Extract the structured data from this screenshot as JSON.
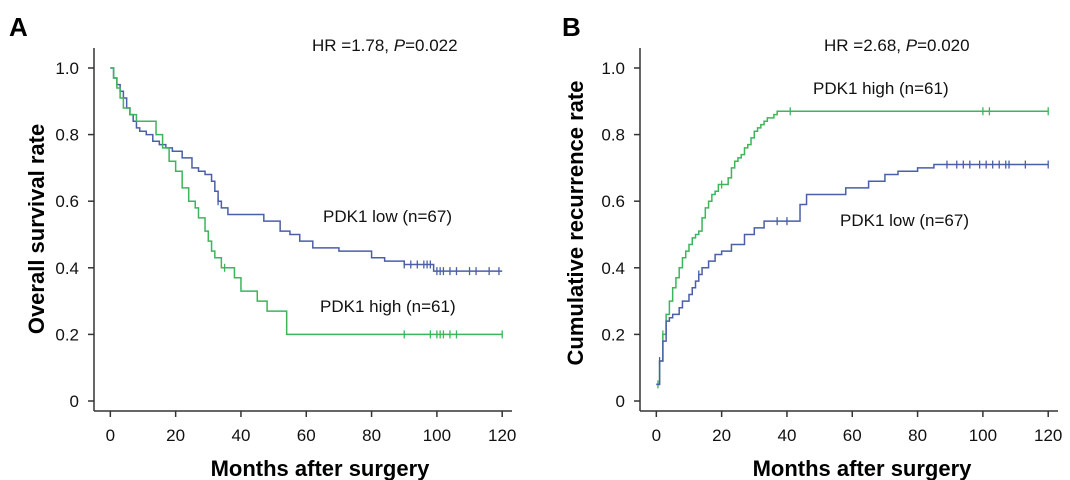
{
  "chart_data": [
    {
      "panel": "A",
      "type": "line",
      "xlabel": "Months after surgery",
      "ylabel": "Overall survival rate",
      "xlim": [
        -5,
        123
      ],
      "ylim": [
        -0.03,
        1.06
      ],
      "xticks": [
        0,
        20,
        40,
        60,
        80,
        100,
        120
      ],
      "yticks": [
        0,
        0.2,
        0.4,
        0.6,
        0.8,
        1.0
      ],
      "ytick_labels": [
        "0",
        "0.2",
        "0.4",
        "0.6",
        "0.8",
        "1.0"
      ],
      "stat_text": {
        "prefix": "HR =1.78, ",
        "p_label": "P",
        "suffix": "=0.022"
      },
      "grid": false,
      "series": [
        {
          "name": "PDK1 low (n=67)",
          "color": "#4a5fa8",
          "step_x": [
            0,
            1,
            2,
            3,
            4,
            5,
            6,
            7,
            8,
            9,
            11,
            13,
            15,
            17,
            19,
            22,
            25,
            27,
            29,
            31,
            32,
            33,
            34,
            36,
            47,
            52,
            55,
            58,
            62,
            70,
            80,
            84,
            90,
            99,
            120
          ],
          "step_y": [
            1.0,
            0.97,
            0.95,
            0.93,
            0.91,
            0.88,
            0.86,
            0.84,
            0.82,
            0.81,
            0.8,
            0.78,
            0.77,
            0.76,
            0.75,
            0.73,
            0.7,
            0.69,
            0.68,
            0.66,
            0.63,
            0.6,
            0.58,
            0.56,
            0.54,
            0.51,
            0.5,
            0.48,
            0.46,
            0.45,
            0.43,
            0.42,
            0.41,
            0.39,
            0.39
          ],
          "censor_x": [
            33,
            90,
            92,
            94,
            96,
            97,
            98,
            100,
            101,
            102,
            104,
            106,
            110,
            112,
            116,
            119
          ],
          "label_pos": "middle-right"
        },
        {
          "name": "PDK1 high (n=61)",
          "color": "#3db55a",
          "step_x": [
            0,
            1,
            2,
            3,
            4,
            6,
            8,
            9,
            14,
            16,
            18,
            20,
            22,
            24,
            26,
            27,
            29,
            30,
            31,
            32,
            34,
            38,
            40,
            45,
            48,
            54,
            120
          ],
          "step_y": [
            1.0,
            0.97,
            0.94,
            0.91,
            0.88,
            0.86,
            0.84,
            0.84,
            0.8,
            0.76,
            0.72,
            0.69,
            0.64,
            0.6,
            0.58,
            0.55,
            0.51,
            0.48,
            0.45,
            0.43,
            0.4,
            0.37,
            0.33,
            0.3,
            0.27,
            0.2,
            0.2
          ],
          "censor_x": [
            35,
            90,
            98,
            100,
            101,
            102,
            104,
            106,
            120
          ],
          "label_pos": "lower-right"
        }
      ]
    },
    {
      "panel": "B",
      "type": "line",
      "xlabel": "Months after surgery",
      "ylabel": "Cumulative recurrence rate",
      "xlim": [
        -5,
        123
      ],
      "ylim": [
        -0.03,
        1.06
      ],
      "xticks": [
        0,
        20,
        40,
        60,
        80,
        100,
        120
      ],
      "yticks": [
        0,
        0.2,
        0.4,
        0.6,
        0.8,
        1.0
      ],
      "ytick_labels": [
        "0",
        "0.2",
        "0.4",
        "0.6",
        "0.8",
        "1.0"
      ],
      "stat_text": {
        "prefix": "HR =2.68, ",
        "p_label": "P",
        "suffix": "=0.020"
      },
      "grid": false,
      "series": [
        {
          "name": "PDK1 high (n=61)",
          "color": "#3db55a",
          "step_x": [
            0,
            1,
            2,
            3,
            4,
            5,
            6,
            7,
            8,
            9,
            10,
            11,
            12,
            13,
            14,
            15,
            16,
            17,
            18,
            19,
            20,
            22,
            23,
            24,
            25,
            26,
            27,
            28,
            29,
            30,
            31,
            32,
            33,
            34,
            35,
            36,
            37,
            120
          ],
          "step_y": [
            0.05,
            0.12,
            0.2,
            0.26,
            0.3,
            0.34,
            0.37,
            0.4,
            0.43,
            0.45,
            0.47,
            0.49,
            0.5,
            0.51,
            0.55,
            0.58,
            0.6,
            0.62,
            0.63,
            0.65,
            0.65,
            0.67,
            0.7,
            0.72,
            0.73,
            0.74,
            0.76,
            0.77,
            0.79,
            0.81,
            0.82,
            0.83,
            0.84,
            0.85,
            0.85,
            0.86,
            0.87,
            0.87
          ],
          "censor_x": [
            0.5,
            2,
            20,
            41,
            100,
            102,
            120
          ],
          "label_pos": "top"
        },
        {
          "name": "PDK1 low (n=67)",
          "color": "#4a5fa8",
          "step_x": [
            0,
            1,
            2,
            3,
            4,
            5,
            7,
            8,
            10,
            11,
            12,
            13,
            14,
            16,
            18,
            20,
            23,
            27,
            30,
            33,
            36,
            44,
            46,
            50,
            58,
            65,
            70,
            74,
            80,
            85,
            92,
            120
          ],
          "step_y": [
            0.05,
            0.12,
            0.18,
            0.24,
            0.25,
            0.26,
            0.28,
            0.3,
            0.32,
            0.34,
            0.36,
            0.38,
            0.4,
            0.42,
            0.44,
            0.45,
            0.47,
            0.5,
            0.52,
            0.54,
            0.54,
            0.59,
            0.62,
            0.62,
            0.64,
            0.66,
            0.68,
            0.69,
            0.7,
            0.71,
            0.71,
            0.71
          ],
          "censor_x": [
            1,
            13,
            37,
            40,
            89,
            92,
            94,
            96,
            99,
            101,
            103,
            105,
            107,
            108,
            113,
            120
          ],
          "label_pos": "middle-right"
        }
      ]
    }
  ]
}
